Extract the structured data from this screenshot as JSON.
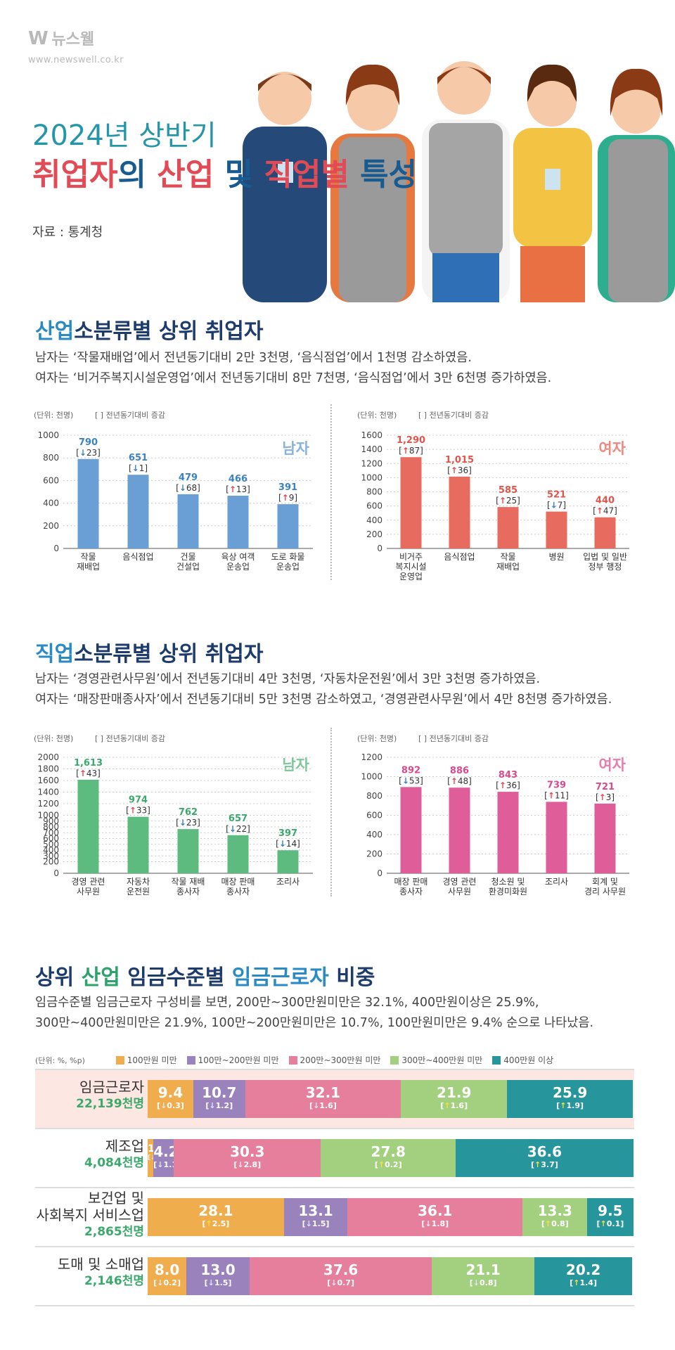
{
  "header": {
    "logo": "뉴스웰",
    "logo_url": "www.newswell.co.kr",
    "title_line1": "2024년 상반기",
    "title_line2": {
      "a": "취업자",
      "b": "의 ",
      "c": "산업",
      "d": " 및 ",
      "e": "직업별",
      "f": " 특성"
    },
    "source": "자료 : 통계청"
  },
  "section1": {
    "title_hl": "산업",
    "title_rest": "소분류별 상위 취업자",
    "desc1": "남자는 ‘작물재배업’에서 전년동기대비 2만 3천명, ‘음식점업’에서 1천명 감소하였음.",
    "desc2": "여자는 ‘비거주복지시설운영업’에서 전년동기대비 8만 7천명, ‘음식점업’에서 3만 6천명 증가하였음."
  },
  "section2": {
    "title_hl": "직업",
    "title_rest": "소분류별 상위 취업자",
    "desc1": "남자는 ‘경영관련사무원’에서 전년동기대비 4만 3천명, ‘자동차운전원’에서 3만 3천명 증가하였음.",
    "desc2": "여자는 ‘매장판매종사자’에서 전년동기대비 5만 3천명 감소하였고, ‘경영관련사무원’에서 4만 8천명 증가하였음."
  },
  "section3": {
    "title_parts": [
      "상위 ",
      "산업",
      " 임금수준별 ",
      "임금근로자",
      " 비중"
    ],
    "desc1": "임금수준별 임금근로자 구성비를 보면, 200만~300만원미만은 32.1%, 400만원이상은 25.9%,",
    "desc2": "300만~400만원미만은 21.9%, 100만~200만원미만은 10.7%, 100만원미만은 9.4% 순으로 나타났음."
  },
  "common": {
    "unit": "(단위: 천명)",
    "change_note": "[ ] 전년동기대비 증감",
    "male": "남자",
    "female": "여자",
    "unit_pct": "(단위: %, %p)"
  },
  "colors": {
    "blue_bar": "#6a9fd6",
    "red_bar": "#e86b5f",
    "green_bar": "#5dbb80",
    "pink_bar": "#df5e9a",
    "up": "#e24b55",
    "down": "#3b82c4"
  },
  "chart_data": [
    {
      "type": "bar",
      "id": "industry_male",
      "categories": [
        "작물\n재배업",
        "음식점업",
        "건물\n건설업",
        "육상 여객\n운송업",
        "도로 화물\n운송업"
      ],
      "values": [
        790,
        651,
        479,
        466,
        391
      ],
      "changes": [
        {
          "dir": "down",
          "value": 23
        },
        {
          "dir": "down",
          "value": 1
        },
        {
          "dir": "down",
          "value": 68
        },
        {
          "dir": "up",
          "value": 13
        },
        {
          "dir": "up",
          "value": 9
        }
      ],
      "ylim": [
        0,
        1000
      ],
      "yticks": [
        0,
        200,
        400,
        600,
        800,
        1000
      ],
      "series_label": "남자",
      "bar_color": "#6a9fd6",
      "label_color": "#3b82c4"
    },
    {
      "type": "bar",
      "id": "industry_female",
      "categories": [
        "비거주\n복지시설\n운영업",
        "음식점업",
        "작물\n재배업",
        "병원",
        "입법 및 일반\n정부 행정"
      ],
      "values": [
        1290,
        1015,
        585,
        521,
        440
      ],
      "changes": [
        {
          "dir": "up",
          "value": 87
        },
        {
          "dir": "up",
          "value": 36
        },
        {
          "dir": "up",
          "value": 25
        },
        {
          "dir": "down",
          "value": 7
        },
        {
          "dir": "up",
          "value": 47
        }
      ],
      "ylim": [
        0,
        1600
      ],
      "yticks": [
        0,
        200,
        400,
        600,
        800,
        1000,
        1200,
        1400,
        1600
      ],
      "series_label": "여자",
      "bar_color": "#e86b5f",
      "label_color": "#e0554b"
    },
    {
      "type": "bar",
      "id": "occupation_male",
      "categories": [
        "경영 관련\n사무원",
        "자동차\n운전원",
        "작물 재배\n종사자",
        "매장 판매\n종사자",
        "조리사"
      ],
      "values": [
        1613,
        974,
        762,
        657,
        397
      ],
      "changes": [
        {
          "dir": "up",
          "value": 43
        },
        {
          "dir": "up",
          "value": 33
        },
        {
          "dir": "down",
          "value": 23
        },
        {
          "dir": "down",
          "value": 22
        },
        {
          "dir": "down",
          "value": 14
        }
      ],
      "ylim": [
        0,
        2000
      ],
      "yticks": [
        0,
        200,
        300,
        400,
        500,
        600,
        700,
        800,
        900,
        1000,
        1200,
        1400,
        1600,
        1800,
        2000
      ],
      "series_label": "남자",
      "bar_color": "#5dbb80",
      "label_color": "#3aa96b"
    },
    {
      "type": "bar",
      "id": "occupation_female",
      "categories": [
        "매장 판매\n종사자",
        "경영 관련\n사무원",
        "청소원 및\n환경미화원",
        "조리사",
        "회계 및\n경리 사무원"
      ],
      "values": [
        892,
        886,
        843,
        739,
        721
      ],
      "changes": [
        {
          "dir": "down",
          "value": 53
        },
        {
          "dir": "up",
          "value": 48
        },
        {
          "dir": "up",
          "value": 36
        },
        {
          "dir": "up",
          "value": 11
        },
        {
          "dir": "up",
          "value": 3
        }
      ],
      "ylim": [
        0,
        1200
      ],
      "yticks": [
        0,
        200,
        400,
        600,
        800,
        1000,
        1200
      ],
      "series_label": "여자",
      "bar_color": "#df5e9a",
      "label_color": "#d94a8c"
    },
    {
      "type": "bar",
      "stacked": true,
      "id": "wage_share",
      "legend": [
        "100만원 미만",
        "100만~200만원 미만",
        "200만~300만원 미만",
        "300만~400만원 미만",
        "400만원 이상"
      ],
      "colors": [
        "#f0ad4e",
        "#9a82bd",
        "#e57f9c",
        "#a3d07f",
        "#27959c"
      ],
      "rows": [
        {
          "label": "임금근로자",
          "count": "22,139천명",
          "values": [
            9.4,
            10.7,
            32.1,
            21.9,
            25.9
          ],
          "changes": [
            {
              "dir": "down",
              "value": "0.3"
            },
            {
              "dir": "down",
              "value": "1.2"
            },
            {
              "dir": "down",
              "value": "1.6"
            },
            {
              "dir": "up",
              "value": "1.6"
            },
            {
              "dir": "up",
              "value": "1.9"
            }
          ]
        },
        {
          "label": "제조업",
          "count": "4,084천명",
          "values": [
            1.2,
            4.2,
            30.3,
            27.8,
            36.6
          ],
          "changes": [
            {
              "dir": "down",
              "value": "0.1"
            },
            {
              "dir": "down",
              "value": "1.1"
            },
            {
              "dir": "down",
              "value": "2.8"
            },
            {
              "dir": "up",
              "value": "0.2"
            },
            {
              "dir": "up",
              "value": "3.7"
            }
          ]
        },
        {
          "label": "보건업 및\n사회복지 서비스업",
          "count": "2,865천명",
          "values": [
            28.1,
            13.1,
            36.1,
            13.3,
            9.5
          ],
          "changes": [
            {
              "dir": "up",
              "value": "2.5"
            },
            {
              "dir": "down",
              "value": "1.5"
            },
            {
              "dir": "down",
              "value": "1.8"
            },
            {
              "dir": "up",
              "value": "0.8"
            },
            {
              "dir": "up",
              "value": "0.1"
            }
          ]
        },
        {
          "label": "도매 및 소매업",
          "count": "2,146천명",
          "values": [
            8.0,
            13.0,
            37.6,
            21.1,
            20.2
          ],
          "changes": [
            {
              "dir": "down",
              "value": "0.2"
            },
            {
              "dir": "down",
              "value": "1.5"
            },
            {
              "dir": "down",
              "value": "0.7"
            },
            {
              "dir": "down",
              "value": "0.8"
            },
            {
              "dir": "up",
              "value": "1.4"
            }
          ]
        }
      ]
    }
  ]
}
